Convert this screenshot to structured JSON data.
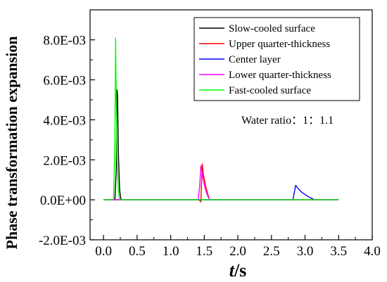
{
  "chart_data": {
    "type": "line",
    "xlabel_italic": "t",
    "xlabel_rest": "/s",
    "ylabel": "Phase transformation expansion",
    "xlim": [
      -0.2,
      4.0
    ],
    "ylim": [
      -0.002,
      0.0095
    ],
    "x_ticks": [
      0.0,
      0.5,
      1.0,
      1.5,
      2.0,
      2.5,
      3.0,
      3.5,
      4.0
    ],
    "x_tick_labels": [
      "0.0",
      "0.5",
      "1.0",
      "1.5",
      "2.0",
      "2.5",
      "3.0",
      "3.5",
      "4.0"
    ],
    "y_ticks": [
      -0.002,
      0.0,
      0.002,
      0.004,
      0.006,
      0.008
    ],
    "y_tick_labels": [
      "-2.0E-03",
      "0.0E+00",
      "2.0E-03",
      "4.0E-03",
      "6.0E-03",
      "8.0E-03"
    ],
    "annotation": "Water ratio：1：1.1",
    "legend_position": "top-right",
    "series": [
      {
        "name": "Slow-cooled surface",
        "color": "#000000",
        "x": [
          0.0,
          0.17,
          0.19,
          0.2,
          0.21,
          0.22,
          0.24,
          0.26,
          3.5
        ],
        "y": [
          0.0,
          0.0,
          0.0015,
          0.0055,
          0.0052,
          0.0025,
          0.0005,
          0.0,
          0.0
        ]
      },
      {
        "name": "Upper quarter-thickness",
        "color": "#ff0000",
        "x": [
          0.0,
          1.42,
          1.45,
          1.47,
          1.49,
          1.52,
          1.55,
          1.58,
          3.5
        ],
        "y": [
          0.0,
          0.0,
          -0.0001,
          0.0018,
          0.0012,
          0.0007,
          0.0003,
          0.0,
          0.0
        ]
      },
      {
        "name": "Center layer",
        "color": "#0000ff",
        "x": [
          0.0,
          2.82,
          2.86,
          2.9,
          2.95,
          3.02,
          3.08,
          3.14,
          3.5
        ],
        "y": [
          0.0,
          0.0,
          0.00072,
          0.00055,
          0.00038,
          0.00022,
          0.0001,
          0.0,
          0.0
        ]
      },
      {
        "name": "Lower quarter-thickness",
        "color": "#ff00ff",
        "x": [
          0.0,
          1.41,
          1.43,
          1.45,
          1.48,
          1.51,
          1.55,
          1.58,
          3.5
        ],
        "y": [
          0.0,
          0.0,
          0.0006,
          0.0017,
          0.0011,
          0.0006,
          0.0002,
          0.0,
          0.0
        ]
      },
      {
        "name": "Fast-cooled surface",
        "color": "#00ff00",
        "x": [
          0.0,
          0.15,
          0.17,
          0.18,
          0.19,
          0.2,
          0.22,
          0.24,
          3.5
        ],
        "y": [
          0.0,
          0.0,
          0.003,
          0.0081,
          0.005,
          0.0022,
          0.0005,
          0.0,
          0.0
        ]
      }
    ]
  }
}
